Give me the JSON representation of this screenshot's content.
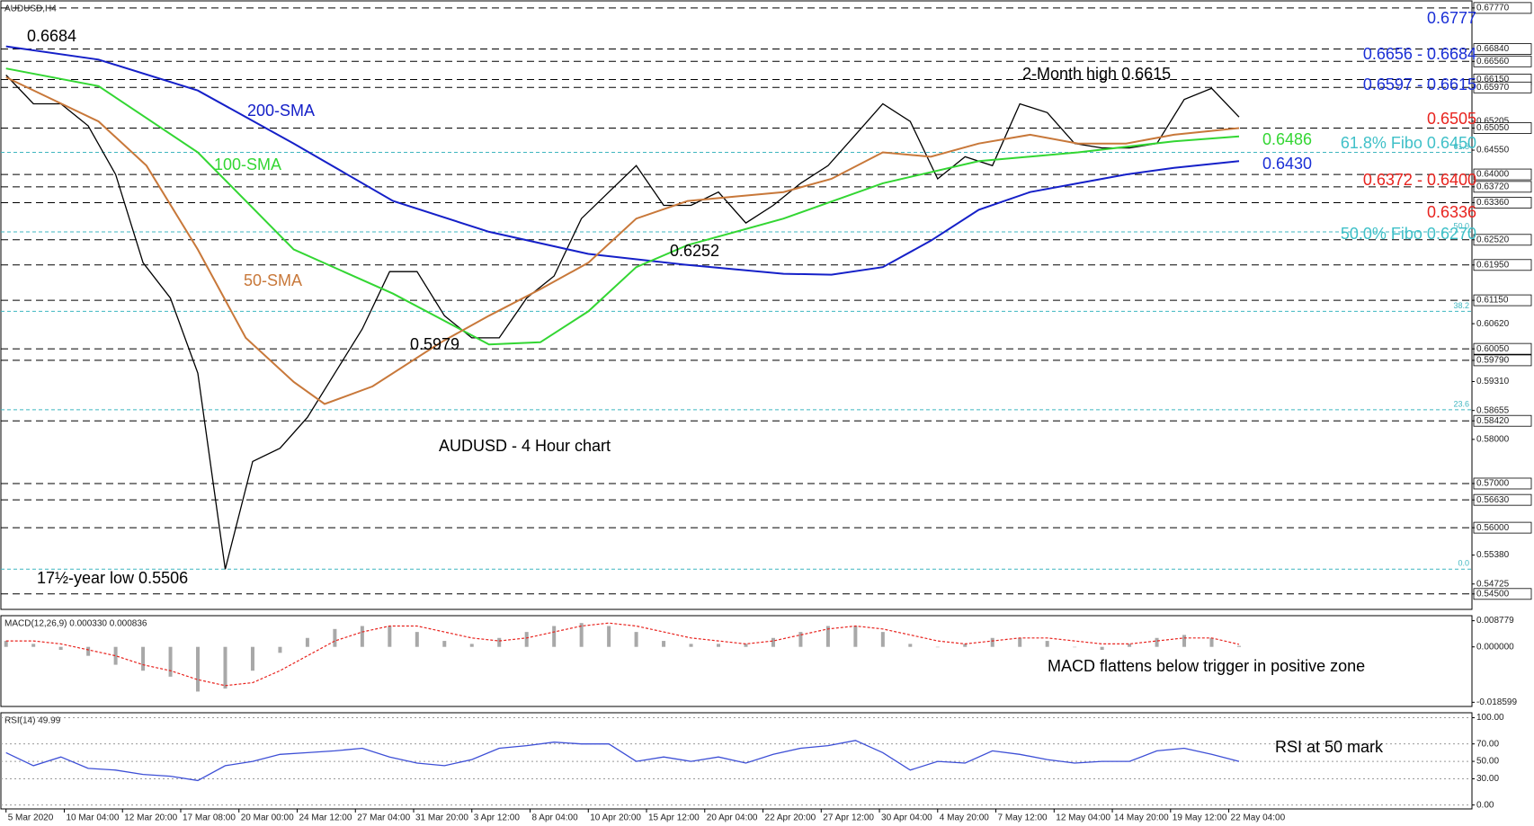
{
  "chart_data": [
    {
      "type": "line",
      "title": "AUDUSD,H4",
      "xlim": [
        -1.5,
        428
      ],
      "ylim": [
        0.5415,
        0.6793
      ],
      "yticks": [
        {
          "value": 0.6777,
          "label": "0.67770"
        },
        {
          "value": 0.6684,
          "label": "0.66840"
        },
        {
          "value": 0.6656,
          "label": "0.66560"
        },
        {
          "value": 0.6615,
          "label": "0.66150"
        },
        {
          "value": 0.6597,
          "label": "0.65970"
        },
        {
          "value": 0.6505,
          "label": "0.65050"
        },
        {
          "value": 0.64,
          "label": "0.64000"
        },
        {
          "value": 0.6372,
          "label": "0.63720"
        },
        {
          "value": 0.6336,
          "label": "0.63360"
        },
        {
          "value": 0.6252,
          "label": "0.62520"
        },
        {
          "value": 0.6195,
          "label": "0.61950"
        },
        {
          "value": 0.6115,
          "label": "0.61150"
        },
        {
          "value": 0.6005,
          "label": "0.60050"
        },
        {
          "value": 0.5979,
          "label": "0.59790"
        },
        {
          "value": 0.5842,
          "label": "0.58420"
        },
        {
          "value": 0.57,
          "label": "0.57000"
        },
        {
          "value": 0.5663,
          "label": "0.56630"
        },
        {
          "value": 0.56,
          "label": "0.56000"
        },
        {
          "value": 0.545,
          "label": "0.54500"
        }
      ],
      "minor_yticks": [
        {
          "value": 0.65205,
          "label": "0.65205"
        },
        {
          "value": 0.6455,
          "label": "0.64550"
        },
        {
          "value": 0.6062,
          "label": "0.60620"
        },
        {
          "value": 0.5931,
          "label": "0.59310"
        },
        {
          "value": 0.58655,
          "label": "0.58655"
        },
        {
          "value": 0.58,
          "label": "0.58000"
        },
        {
          "value": 0.5538,
          "label": "0.55380"
        },
        {
          "value": 0.54725,
          "label": "0.54725"
        }
      ],
      "fibo_color": "#3fb6c0",
      "fibo_levels": [
        {
          "value": 0.645,
          "label": "61.8"
        },
        {
          "value": 0.627,
          "label": "50.0"
        },
        {
          "value": 0.609,
          "label": "38.2"
        },
        {
          "value": 0.5867,
          "label": "23.6"
        },
        {
          "value": 0.5506,
          "label": "0.0"
        }
      ],
      "series": [
        {
          "color": "#000000",
          "x": [
            0,
            8,
            16,
            24,
            32,
            40,
            48,
            56,
            64,
            72,
            80,
            88,
            96,
            104,
            112,
            120,
            128,
            136,
            144,
            152,
            160,
            168,
            176,
            184,
            192,
            200,
            208,
            216,
            224,
            232,
            240,
            248,
            256,
            264,
            272,
            280,
            288,
            296,
            304,
            312,
            320,
            328,
            336,
            344,
            352,
            360
          ],
          "values": [
            0.6625,
            0.656,
            0.656,
            0.651,
            0.64,
            0.62,
            0.612,
            0.595,
            0.5506,
            0.575,
            0.578,
            0.585,
            0.595,
            0.605,
            0.618,
            0.618,
            0.608,
            0.603,
            0.603,
            0.612,
            0.617,
            0.63,
            0.636,
            0.642,
            0.633,
            0.633,
            0.636,
            0.629,
            0.633,
            0.638,
            0.642,
            0.649,
            0.656,
            0.652,
            0.639,
            0.644,
            0.642,
            0.656,
            0.654,
            0.647,
            0.646,
            0.646,
            0.647,
            0.657,
            0.6595,
            0.653
          ]
        },
        {
          "name": "200-SMA",
          "color": "#1520c8",
          "x": [
            0,
            27,
            56,
            84,
            113,
            141,
            170,
            199,
            227,
            241,
            256,
            270,
            284,
            299,
            313,
            327,
            341,
            360
          ],
          "values": [
            0.669,
            0.666,
            0.659,
            0.647,
            0.634,
            0.627,
            0.622,
            0.6195,
            0.6175,
            0.6173,
            0.619,
            0.625,
            0.632,
            0.636,
            0.638,
            0.64,
            0.6415,
            0.643
          ]
        },
        {
          "name": "100-SMA",
          "color": "#33d633",
          "x": [
            0,
            27,
            56,
            84,
            113,
            141,
            156,
            170,
            184,
            199,
            227,
            256,
            284,
            313,
            341,
            360
          ],
          "values": [
            0.664,
            0.66,
            0.645,
            0.623,
            0.613,
            0.6015,
            0.602,
            0.609,
            0.619,
            0.624,
            0.63,
            0.638,
            0.643,
            0.645,
            0.6475,
            0.6486
          ]
        },
        {
          "name": "50-SMA",
          "color": "#c8783a",
          "x": [
            0,
            27,
            41,
            56,
            70,
            84,
            93,
            107,
            127,
            141,
            156,
            170,
            184,
            199,
            213,
            227,
            241,
            256,
            270,
            284,
            299,
            313,
            327,
            341,
            360
          ],
          "values": [
            0.662,
            0.652,
            0.642,
            0.623,
            0.603,
            0.593,
            0.588,
            0.592,
            0.602,
            0.608,
            0.614,
            0.62,
            0.63,
            0.634,
            0.635,
            0.636,
            0.639,
            0.645,
            0.644,
            0.647,
            0.649,
            0.647,
            0.647,
            0.649,
            0.6505
          ]
        }
      ],
      "annotations": [
        {
          "text": "0.6684",
          "color": "#000000"
        },
        {
          "text": "2-Month high 0.6615",
          "color": "#000000"
        },
        {
          "text": "0.6252",
          "color": "#000000"
        },
        {
          "text": "0.5979",
          "color": "#000000"
        },
        {
          "text": "17½-year low 0.5506",
          "color": "#000000"
        },
        {
          "text": "AUDUSD - 4 Hour chart",
          "color": "#000000"
        },
        {
          "text": "0.6777",
          "color": "#1a2fd6"
        },
        {
          "text": "0.6656 - 0.6684",
          "color": "#1a2fd6"
        },
        {
          "text": "0.6597 - 0.6615",
          "color": "#1a2fd6"
        },
        {
          "text": "0.6505",
          "color": "#e8231e"
        },
        {
          "text": "0.6486",
          "color": "#33d633"
        },
        {
          "text": "61.8% Fibo 0.6450",
          "color": "#3fc0c8"
        },
        {
          "text": "0.6430",
          "color": "#1a2fd6"
        },
        {
          "text": "0.6372 - 0.6400",
          "color": "#e8231e"
        },
        {
          "text": "0.6336",
          "color": "#e8231e"
        },
        {
          "text": "50.0% Fibo 0.6270",
          "color": "#3fc0c8"
        }
      ]
    },
    {
      "type": "macd",
      "title": "MACD(12,26,9) 0.000330 0.000836",
      "xlim": [
        -1.5,
        428
      ],
      "ylim": [
        -0.02,
        0.01047
      ],
      "yticks": [
        0.008779,
        {
          "value": 0,
          "label": "0.000000"
        },
        -0.018599
      ],
      "x": [
        0,
        8,
        16,
        24,
        32,
        40,
        48,
        56,
        64,
        72,
        80,
        88,
        96,
        104,
        112,
        120,
        128,
        136,
        144,
        152,
        160,
        168,
        176,
        184,
        192,
        200,
        208,
        216,
        224,
        232,
        240,
        248,
        256,
        264,
        272,
        280,
        288,
        296,
        304,
        312,
        320,
        328,
        336,
        344,
        352,
        360
      ],
      "histogram": {
        "color": "#a8a8a8",
        "values": [
          0.002,
          0.001,
          -0.001,
          -0.003,
          -0.006,
          -0.008,
          -0.01,
          -0.015,
          -0.014,
          -0.008,
          -0.002,
          0.003,
          0.006,
          0.007,
          0.007,
          0.005,
          0.002,
          0.001,
          0.003,
          0.005,
          0.007,
          0.008,
          0.007,
          0.005,
          0.002,
          0.001,
          0.001,
          0.001,
          0.003,
          0.005,
          0.007,
          0.007,
          0.005,
          0.001,
          0,
          0.001,
          0.003,
          0.003,
          0.002,
          0,
          -0.001,
          0.001,
          0.003,
          0.004,
          0.003,
          0.00033
        ]
      },
      "signal": {
        "color": "#e8231e",
        "values": [
          0.002,
          0.002,
          0.001,
          -0.001,
          -0.003,
          -0.006,
          -0.008,
          -0.011,
          -0.013,
          -0.012,
          -0.008,
          -0.003,
          0.002,
          0.005,
          0.007,
          0.007,
          0.005,
          0.003,
          0.002,
          0.003,
          0.005,
          0.007,
          0.008,
          0.007,
          0.005,
          0.003,
          0.002,
          0.001,
          0.002,
          0.004,
          0.006,
          0.007,
          0.006,
          0.004,
          0.002,
          0.001,
          0.002,
          0.003,
          0.003,
          0.002,
          0.001,
          0.001,
          0.002,
          0.003,
          0.003,
          0.000836
        ]
      },
      "annotations": [
        {
          "text": "MACD flattens below trigger in positive zone",
          "color": "#000000"
        }
      ]
    },
    {
      "type": "line",
      "title": "RSI(14) 49.99",
      "xlim": [
        -1.5,
        428
      ],
      "ylim": [
        -4.5,
        105.7
      ],
      "yticks": [
        {
          "value": 100,
          "label": "100.00"
        },
        {
          "value": 70,
          "label": "70.00"
        },
        {
          "value": 50,
          "label": "50.00"
        },
        {
          "value": 30,
          "label": "30.00"
        },
        {
          "value": 0,
          "label": "0.00"
        }
      ],
      "grid": true,
      "series": [
        {
          "color": "#3d4fd6",
          "x": [
            0,
            8,
            16,
            24,
            32,
            40,
            48,
            56,
            64,
            72,
            80,
            88,
            96,
            104,
            112,
            120,
            128,
            136,
            144,
            152,
            160,
            168,
            176,
            184,
            192,
            200,
            208,
            216,
            224,
            232,
            240,
            248,
            256,
            264,
            272,
            280,
            288,
            296,
            304,
            312,
            320,
            328,
            336,
            344,
            352,
            360
          ],
          "values": [
            60,
            45,
            55,
            42,
            40,
            35,
            33,
            28,
            45,
            50,
            58,
            60,
            62,
            65,
            55,
            48,
            45,
            52,
            65,
            68,
            72,
            70,
            70,
            50,
            55,
            50,
            55,
            48,
            58,
            65,
            68,
            74,
            60,
            40,
            50,
            48,
            62,
            58,
            52,
            48,
            50,
            50,
            62,
            65,
            58,
            49.99
          ]
        }
      ],
      "annotations": [
        {
          "text": "RSI at 50 mark",
          "color": "#000000"
        }
      ],
      "xticks": [
        {
          "value": 0,
          "label": "5 Mar 2020"
        },
        {
          "value": 17,
          "label": "10 Mar 04:00"
        },
        {
          "value": 34,
          "label": "12 Mar 20:00"
        },
        {
          "value": 51,
          "label": "17 Mar 08:00"
        },
        {
          "value": 68,
          "label": "20 Mar 00:00"
        },
        {
          "value": 85,
          "label": "24 Mar 12:00"
        },
        {
          "value": 102,
          "label": "27 Mar 04:00"
        },
        {
          "value": 119,
          "label": "31 Mar 20:00"
        },
        {
          "value": 136,
          "label": "3 Apr 12:00"
        },
        {
          "value": 153,
          "label": "8 Apr 04:00"
        },
        {
          "value": 170,
          "label": "10 Apr 20:00"
        },
        {
          "value": 187,
          "label": "15 Apr 12:00"
        },
        {
          "value": 204,
          "label": "20 Apr 04:00"
        },
        {
          "value": 221,
          "label": "22 Apr 20:00"
        },
        {
          "value": 238,
          "label": "27 Apr 12:00"
        },
        {
          "value": 255,
          "label": "30 Apr 04:00"
        },
        {
          "value": 272,
          "label": "4 May 20:00"
        },
        {
          "value": 289,
          "label": "7 May 12:00"
        },
        {
          "value": 306,
          "label": "12 May 04:00"
        },
        {
          "value": 323,
          "label": "14 May 20:00"
        },
        {
          "value": 340,
          "label": "19 May 12:00"
        },
        {
          "value": 357,
          "label": "22 May 04:00"
        }
      ]
    }
  ]
}
